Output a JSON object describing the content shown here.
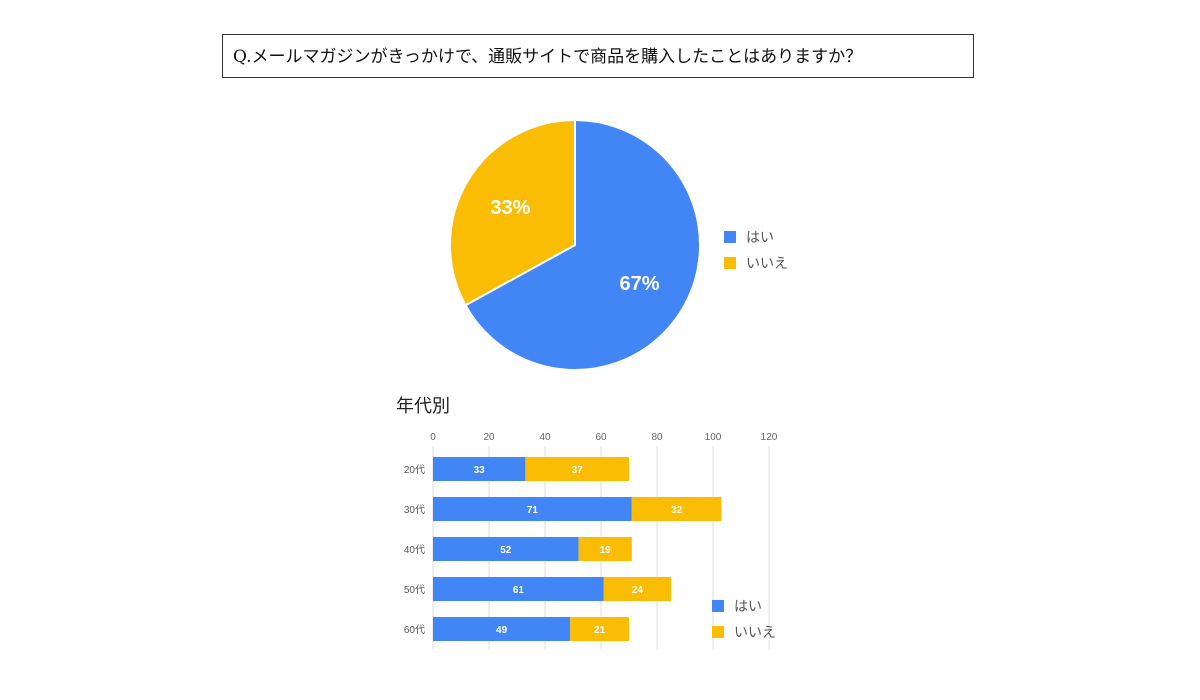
{
  "question": "Q.メールマガジンがきっかけで、通販サイトで商品を購入したことはありますか？",
  "section_title": "年代別",
  "colors": {
    "yes": "#4285F4",
    "no": "#FBBC04",
    "grid": "#dddddd",
    "tick_text": "#666666"
  },
  "chart_data": [
    {
      "type": "pie",
      "categories": [
        "はい",
        "いいえ"
      ],
      "values": [
        67,
        33
      ],
      "labels": [
        "67%",
        "33%"
      ],
      "legend_position": "right"
    },
    {
      "type": "bar",
      "orientation": "horizontal",
      "stacked": true,
      "categories": [
        "20代",
        "30代",
        "40代",
        "50代",
        "60代"
      ],
      "series": [
        {
          "name": "はい",
          "values": [
            33,
            71,
            52,
            61,
            49
          ]
        },
        {
          "name": "いいえ",
          "values": [
            37,
            32,
            19,
            24,
            21
          ]
        }
      ],
      "xlim": [
        0,
        120
      ],
      "xticks": [
        0,
        20,
        40,
        60,
        80,
        100,
        120
      ],
      "grid": true,
      "legend_position": "bottom-right"
    }
  ]
}
